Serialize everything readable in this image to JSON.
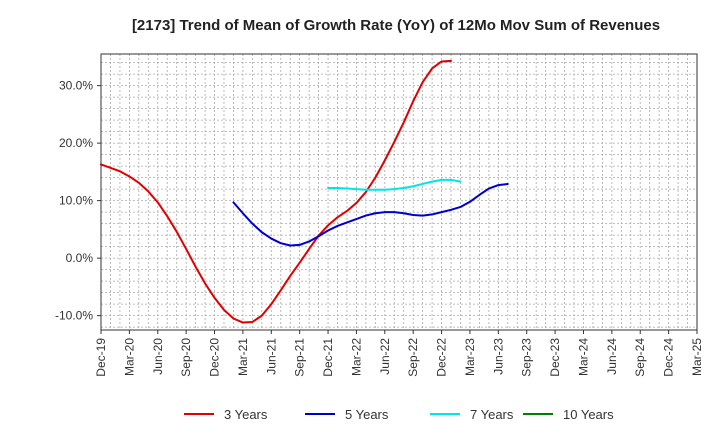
{
  "chart_data": {
    "type": "line",
    "title": "[2173]  Trend of Mean of Growth Rate (YoY) of 12Mo Mov Sum of Revenues",
    "xlabel": "",
    "ylabel": "",
    "x_ticks": [
      "Dec-19",
      "Mar-20",
      "Jun-20",
      "Sep-20",
      "Dec-20",
      "Mar-21",
      "Jun-21",
      "Sep-21",
      "Dec-21",
      "Mar-22",
      "Jun-22",
      "Sep-22",
      "Dec-22",
      "Mar-23",
      "Jun-23",
      "Sep-23",
      "Dec-23",
      "Mar-24",
      "Jun-24",
      "Sep-24",
      "Dec-24",
      "Mar-25"
    ],
    "y_ticks": [
      30.0,
      20.0,
      10.0,
      0.0,
      -10.0
    ],
    "y_tick_labels": [
      "30.0%",
      "20.0%",
      "10.0%",
      "0.0%",
      "-10.0%"
    ],
    "ylim": [
      -12.5,
      35.5
    ],
    "grid": true,
    "legend_position": "bottom",
    "series": [
      {
        "name": "3 Years",
        "color": "#e00000",
        "x_start_index": 0,
        "values": [
          16.3,
          15.7,
          15.1,
          14.2,
          13.1,
          11.6,
          9.7,
          7.3,
          4.6,
          1.6,
          -1.5,
          -4.4,
          -6.9,
          -9.0,
          -10.5,
          -11.2,
          -11.1,
          -10.0,
          -8.0,
          -5.6,
          -3.1,
          -0.8,
          1.6,
          3.9,
          5.7,
          7.1,
          8.2,
          9.6,
          11.5,
          14.0,
          17.0,
          20.2,
          23.6,
          27.3,
          30.6,
          33.0,
          34.2,
          34.3
        ]
      },
      {
        "name": "5 Years",
        "color": "#0000cc",
        "x_start_index": 14,
        "values": [
          9.7,
          7.8,
          6.0,
          4.5,
          3.4,
          2.6,
          2.2,
          2.3,
          2.9,
          3.8,
          4.8,
          5.6,
          6.2,
          6.8,
          7.4,
          7.8,
          8.0,
          8.0,
          7.8,
          7.5,
          7.4,
          7.6,
          8.0,
          8.4,
          8.9,
          9.8,
          11.0,
          12.1,
          12.7,
          12.9
        ]
      },
      {
        "name": "7 Years",
        "color": "#00e5e5",
        "x_start_index": 24,
        "values": [
          12.2,
          12.2,
          12.1,
          12.0,
          11.9,
          11.9,
          11.9,
          12.0,
          12.2,
          12.5,
          12.9,
          13.3,
          13.6,
          13.6,
          13.3
        ]
      },
      {
        "name": "10 Years",
        "color": "#008000",
        "x_start_index": 0,
        "values": []
      }
    ]
  }
}
